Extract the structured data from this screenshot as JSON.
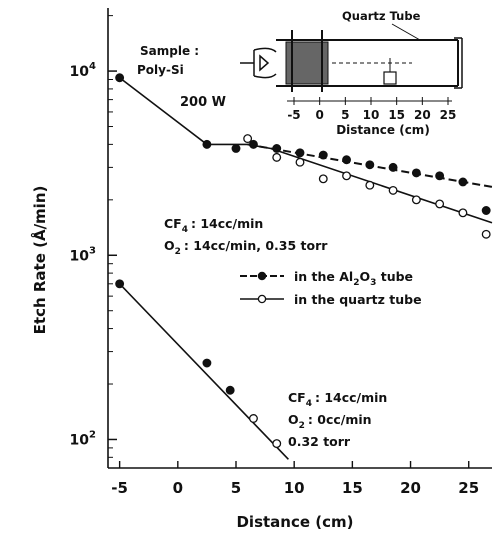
{
  "chart_data": {
    "type": "scatter",
    "title": "",
    "xlabel": "Distance (cm)",
    "ylabel": "Etch Rate (Å/min)",
    "y_scale": "log",
    "x_ticks": [
      -5,
      0,
      5,
      10,
      15,
      20,
      25
    ],
    "y_tick_exponents": [
      2,
      3,
      4
    ],
    "xlim": [
      -6,
      27
    ],
    "ylim": [
      70,
      22000
    ],
    "grid": false,
    "sample_label": "Sample :",
    "sample_value": "Poly-Si",
    "power_label": "200 W",
    "legend": {
      "placement": "middle-right",
      "entries": [
        {
          "marker": "filled",
          "dash": true,
          "prefix": "in the Al",
          "sub1": "2",
          "mid": "O",
          "sub2": "3",
          "suffix": " tube"
        },
        {
          "marker": "open",
          "dash": false,
          "text": "in the quartz tube"
        }
      ]
    },
    "conditions_upper": {
      "line1_gas": "CF",
      "line1_sub": "4",
      "line1_value": ": 14cc/min",
      "line2_gas": "O",
      "line2_sub": "2",
      "line2_value": ": 14cc/min, 0.35 torr"
    },
    "conditions_lower": {
      "line1_gas": "CF",
      "line1_sub": "4",
      "line1_value": ": 14cc/min",
      "line2_gas": "O",
      "line2_sub": "2",
      "line2_value": ": 0cc/min",
      "line3": "0.32 torr"
    },
    "inset": {
      "title": "Quartz Tube",
      "xlabel": "Distance (cm)",
      "tick_labels": [
        "-5",
        "0",
        "5",
        "10",
        "15",
        "20",
        "25"
      ]
    },
    "series": [
      {
        "marker": "filled",
        "values": [
          [
            -5,
            9200
          ],
          [
            2.5,
            4000
          ],
          [
            5,
            3800
          ],
          [
            6.5,
            4000
          ],
          [
            8.5,
            3800
          ],
          [
            10.5,
            3600
          ],
          [
            12.5,
            3500
          ],
          [
            14.5,
            3300
          ],
          [
            16.5,
            3100
          ],
          [
            18.5,
            3000
          ],
          [
            20.5,
            2800
          ],
          [
            22.5,
            2700
          ],
          [
            24.5,
            2500
          ],
          [
            26.5,
            1750
          ]
        ]
      },
      {
        "marker": "open",
        "values": [
          [
            6,
            4300
          ],
          [
            8.5,
            3400
          ],
          [
            10.5,
            3200
          ],
          [
            12.5,
            2600
          ],
          [
            14.5,
            2700
          ],
          [
            16.5,
            2400
          ],
          [
            18.5,
            2250
          ],
          [
            20.5,
            2000
          ],
          [
            22.5,
            1900
          ],
          [
            24.5,
            1700
          ],
          [
            26.5,
            1300
          ]
        ]
      },
      {
        "marker": "filled",
        "values": [
          [
            -5,
            700
          ],
          [
            2.5,
            260
          ],
          [
            4.5,
            185
          ]
        ]
      },
      {
        "marker": "open",
        "values": [
          [
            6.5,
            130
          ],
          [
            8.5,
            95
          ]
        ]
      }
    ],
    "fit_lines": [
      {
        "dash": false,
        "points": [
          [
            -5,
            9200
          ],
          [
            2.5,
            4000
          ],
          [
            6,
            4000
          ],
          [
            8,
            3800
          ],
          [
            27,
            1500
          ]
        ]
      },
      {
        "dash": true,
        "points": [
          [
            6,
            4000
          ],
          [
            27,
            2350
          ]
        ]
      },
      {
        "dash": false,
        "points": [
          [
            -5,
            700
          ],
          [
            9.5,
            78
          ]
        ]
      }
    ]
  }
}
